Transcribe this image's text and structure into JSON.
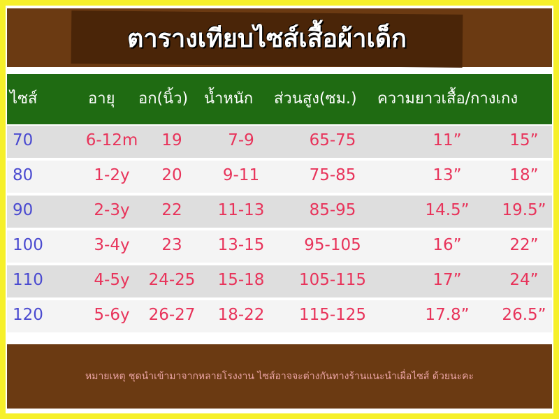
{
  "title": "ตารางเทียบไซส์เสื้อผ้าเด็ก",
  "table": {
    "header": [
      "ไซส์",
      "อายุ",
      "อก(นิ้ว)",
      "น้ำหนัก",
      "ส่วนสูง(ซม.)",
      "ความยาวเสื้อ/กางเกง"
    ],
    "rows": [
      [
        "70",
        "6-12m",
        "19",
        "7-9",
        "65-75",
        "11”",
        "15”"
      ],
      [
        "80",
        "1-2y",
        "20",
        "9-11",
        "75-85",
        "13”",
        "18”"
      ],
      [
        "90",
        "2-3y",
        "22",
        "11-13",
        "85-95",
        "14.5”",
        "19.5”"
      ],
      [
        "100",
        "3-4y",
        "23",
        "13-15",
        "95-105",
        "16”",
        "22”"
      ],
      [
        "110",
        "4-5y",
        "24-25",
        "15-18",
        "105-115",
        "17”",
        "24”"
      ],
      [
        "120",
        "5-6y",
        "26-27",
        "18-22",
        "115-125",
        "17.8”",
        "26.5”"
      ]
    ]
  },
  "note": "หมายเหตุ ชุดนำเข้ามาจากหลายโรงงาน ไซส์อาจจะต่างกันทางร้านแนะนำเผื่อไซส์ ด้วยนะคะ"
}
